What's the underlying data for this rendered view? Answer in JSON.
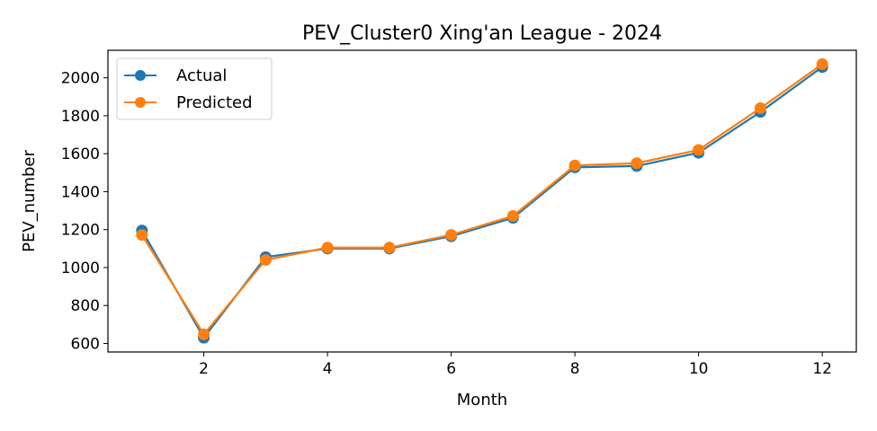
{
  "chart_data": {
    "type": "line",
    "title": "PEV_Cluster0 Xing'an League - 2024",
    "xlabel": "Month",
    "ylabel": "PEV_number",
    "x": [
      1,
      2,
      3,
      4,
      5,
      6,
      7,
      8,
      9,
      10,
      11,
      12
    ],
    "xticks": [
      2,
      4,
      6,
      8,
      10,
      12
    ],
    "yticks": [
      600,
      800,
      1000,
      1200,
      1400,
      1600,
      1800,
      2000
    ],
    "xlim": [
      0.45,
      12.55
    ],
    "ylim": [
      555,
      2145
    ],
    "grid": false,
    "legend_position": "upper-left",
    "series": [
      {
        "name": "Actual",
        "color": "#1f77b4",
        "values": [
          1195,
          630,
          1055,
          1100,
          1100,
          1165,
          1262,
          1528,
          1535,
          1605,
          1820,
          2057
        ]
      },
      {
        "name": "Predicted",
        "color": "#ff7f0e",
        "values": [
          1172,
          648,
          1040,
          1105,
          1105,
          1172,
          1272,
          1538,
          1550,
          1620,
          1840,
          2072
        ]
      }
    ]
  }
}
